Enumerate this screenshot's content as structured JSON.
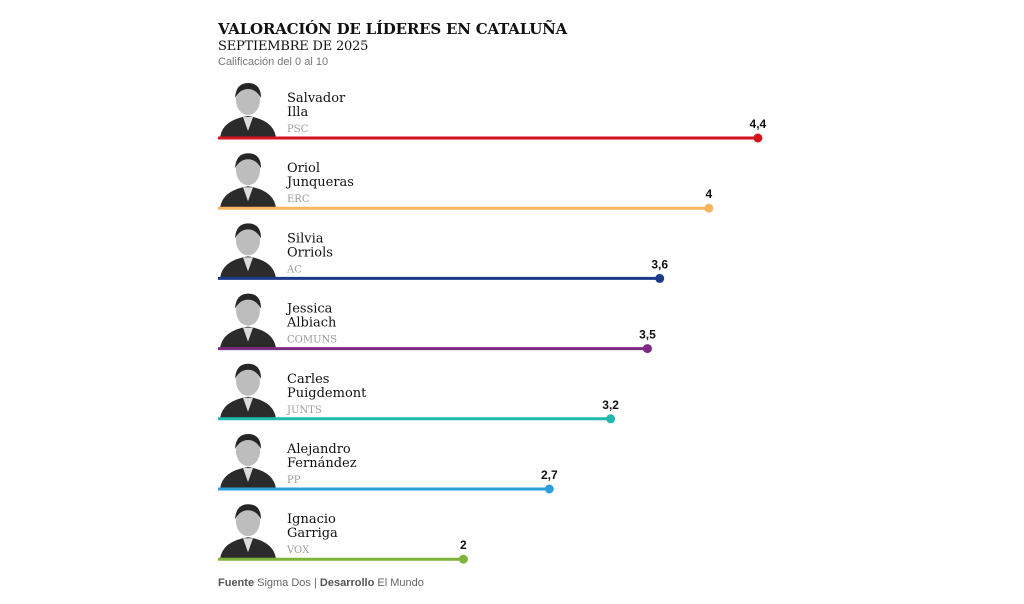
{
  "header": {
    "title": "VALORACIÓN DE LÍDERES EN CATALUÑA",
    "subtitle": "SEPTIEMBRE DE 2025",
    "scale_note": "Calificación del 0 al 10"
  },
  "footer": {
    "source_label": "Fuente",
    "source_value": "Sigma Dos",
    "separator": "|",
    "dev_label": "Desarrollo",
    "dev_value": "El Mundo"
  },
  "chart_data": {
    "type": "bar",
    "title": "VALORACIÓN DE LÍDERES EN CATALUÑA",
    "subtitle": "SEPTIEMBRE DE 2025",
    "ylabel": "Calificación del 0 al 10",
    "xlim": [
      0,
      10
    ],
    "grid": false,
    "legend": "none",
    "items": [
      {
        "first": "Salvador",
        "last": "Illa",
        "party": "PSC",
        "value": 4.4,
        "label": "4,4",
        "color": "#d7121f"
      },
      {
        "first": "Oriol",
        "last": "Junqueras",
        "party": "ERC",
        "value": 4.0,
        "label": "4",
        "color": "#f9b55d"
      },
      {
        "first": "Silvia",
        "last": "Orriols",
        "party": "AC",
        "value": 3.6,
        "label": "3,6",
        "color": "#1b3a8c"
      },
      {
        "first": "Jessica",
        "last": "Albiach",
        "party": "COMUNS",
        "value": 3.5,
        "label": "3,5",
        "color": "#7e2a82"
      },
      {
        "first": "Carles",
        "last": "Puigdemont",
        "party": "JUNTS",
        "value": 3.2,
        "label": "3,2",
        "color": "#21b8b0"
      },
      {
        "first": "Alejandro",
        "last": "Fernández",
        "party": "PP",
        "value": 2.7,
        "label": "2,7",
        "color": "#2e9fdb"
      },
      {
        "first": "Ignacio",
        "last": "Garriga",
        "party": "VOX",
        "value": 2.0,
        "label": "2",
        "color": "#7db53c"
      }
    ]
  }
}
